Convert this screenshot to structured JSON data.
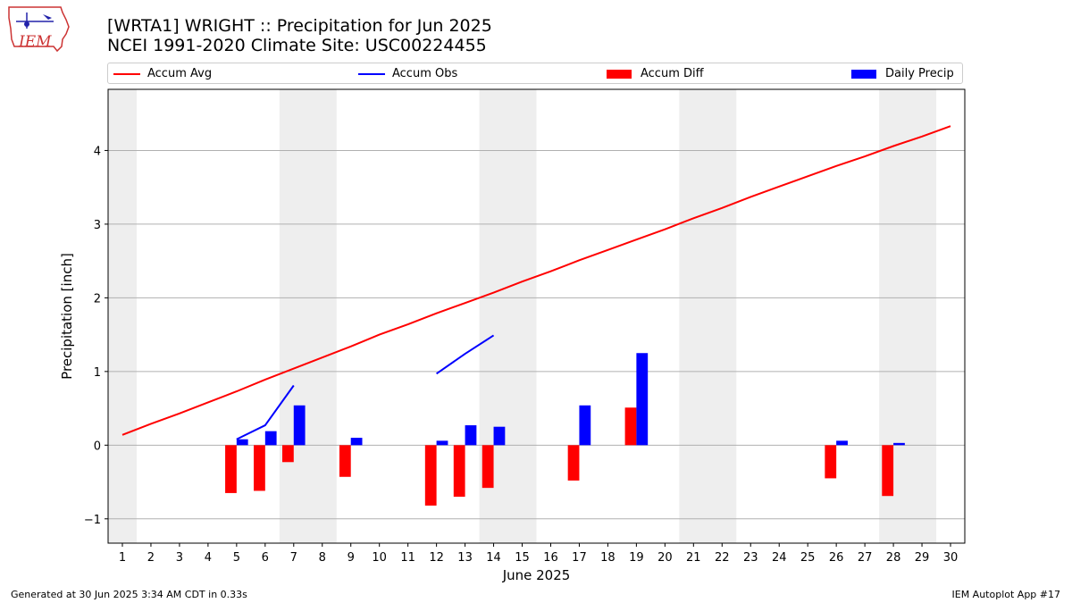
{
  "header": {
    "title_line1": "[WRTA1] WRIGHT :: Precipitation for Jun 2025",
    "title_line2": "NCEI 1991-2020 Climate Site: USC00224455",
    "logo_text": "IEM"
  },
  "footer": {
    "left": "Generated at 30 Jun 2025 3:34 AM CDT in 0.33s",
    "right": "IEM Autoplot App #17"
  },
  "legend": {
    "items": [
      {
        "label": "Accum Avg",
        "kind": "line",
        "color": "#ff0000"
      },
      {
        "label": "Accum Obs",
        "kind": "line",
        "color": "#0000ff"
      },
      {
        "label": "Accum Diff",
        "kind": "bar",
        "color": "#ff0000"
      },
      {
        "label": "Daily Precip",
        "kind": "bar",
        "color": "#0000ff"
      }
    ]
  },
  "chart_data": {
    "type": "bar",
    "xlabel": "June 2025",
    "ylabel": "Precipitation [inch]",
    "xlim": [
      0.5,
      30.5
    ],
    "ylim": [
      -1.33,
      4.83
    ],
    "x_ticks": [
      1,
      2,
      3,
      4,
      5,
      6,
      7,
      8,
      9,
      10,
      11,
      12,
      13,
      14,
      15,
      16,
      17,
      18,
      19,
      20,
      21,
      22,
      23,
      24,
      25,
      26,
      27,
      28,
      29,
      30
    ],
    "y_ticks": [
      -1,
      0,
      1,
      2,
      3,
      4
    ],
    "y_tick_labels": [
      "−1",
      "0",
      "1",
      "2",
      "3",
      "4"
    ],
    "grid": "horizontal",
    "weekend_shading": [
      [
        0.5,
        1.5
      ],
      [
        6.5,
        8.5
      ],
      [
        13.5,
        15.5
      ],
      [
        20.5,
        22.5
      ],
      [
        27.5,
        29.5
      ]
    ],
    "series": [
      {
        "name": "Accum Avg",
        "kind": "line",
        "color": "#ff0000",
        "x": [
          1,
          2,
          3,
          4,
          5,
          6,
          7,
          8,
          9,
          10,
          11,
          12,
          13,
          14,
          15,
          16,
          17,
          18,
          19,
          20,
          21,
          22,
          23,
          24,
          25,
          26,
          27,
          28,
          29,
          30
        ],
        "values": [
          0.14,
          0.29,
          0.43,
          0.58,
          0.73,
          0.89,
          1.04,
          1.19,
          1.34,
          1.5,
          1.64,
          1.79,
          1.93,
          2.07,
          2.22,
          2.36,
          2.51,
          2.65,
          2.79,
          2.93,
          3.08,
          3.22,
          3.37,
          3.51,
          3.65,
          3.79,
          3.92,
          4.06,
          4.19,
          4.33
        ]
      },
      {
        "name": "Accum Obs",
        "kind": "line",
        "color": "#0000ff",
        "segments": [
          {
            "x": [
              5,
              6,
              7
            ],
            "values": [
              0.08,
              0.27,
              0.81
            ]
          },
          {
            "x": [
              12,
              13,
              14
            ],
            "values": [
              0.97,
              1.24,
              1.49
            ]
          }
        ]
      },
      {
        "name": "Accum Diff",
        "kind": "bar",
        "color": "#ff0000",
        "x": [
          5,
          6,
          7,
          9,
          12,
          13,
          14,
          17,
          19,
          26,
          28
        ],
        "values": [
          -0.65,
          -0.62,
          -0.23,
          -0.43,
          -0.82,
          -0.7,
          -0.58,
          -0.48,
          0.51,
          -0.45,
          -0.69
        ]
      },
      {
        "name": "Daily Precip",
        "kind": "bar",
        "color": "#0000ff",
        "x": [
          5,
          6,
          7,
          9,
          12,
          13,
          14,
          17,
          19,
          26,
          28
        ],
        "values": [
          0.08,
          0.19,
          0.54,
          0.1,
          0.06,
          0.27,
          0.25,
          0.54,
          1.25,
          0.06,
          0.03
        ]
      }
    ]
  }
}
